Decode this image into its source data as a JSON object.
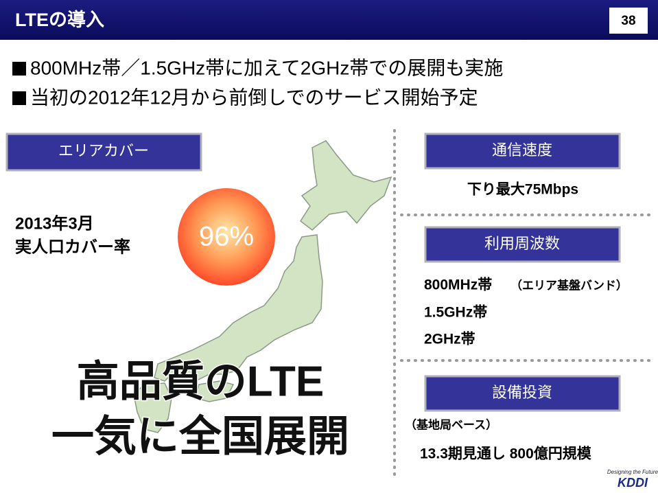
{
  "header": {
    "title": "LTEの導入",
    "page_number": "38"
  },
  "bullets": [
    "800MHz帯／1.5GHz帯に加えて2GHz帯での展開も実施",
    "当初の2012年12月から前倒しでのサービス開始予定"
  ],
  "area": {
    "heading": "エリアカバー",
    "label_lines": [
      "2013年3月",
      "実人口カバー率"
    ],
    "coverage": "96%",
    "slogan_lines": [
      "高品質のLTE",
      "一気に全国展開"
    ]
  },
  "speed": {
    "heading": "通信速度",
    "text": "下り最大75Mbps"
  },
  "frequency": {
    "heading": "利用周波数",
    "lines": [
      "800MHz帯",
      "（エリア基盤バンド）",
      "1.5GHz帯",
      "2GHz帯"
    ]
  },
  "investment": {
    "heading": "設備投資",
    "note": "（基地局ベース）",
    "text": "13.3期見通し 800億円規模"
  },
  "logo": {
    "tagline": "Designing the Future",
    "name": "KDDI"
  }
}
